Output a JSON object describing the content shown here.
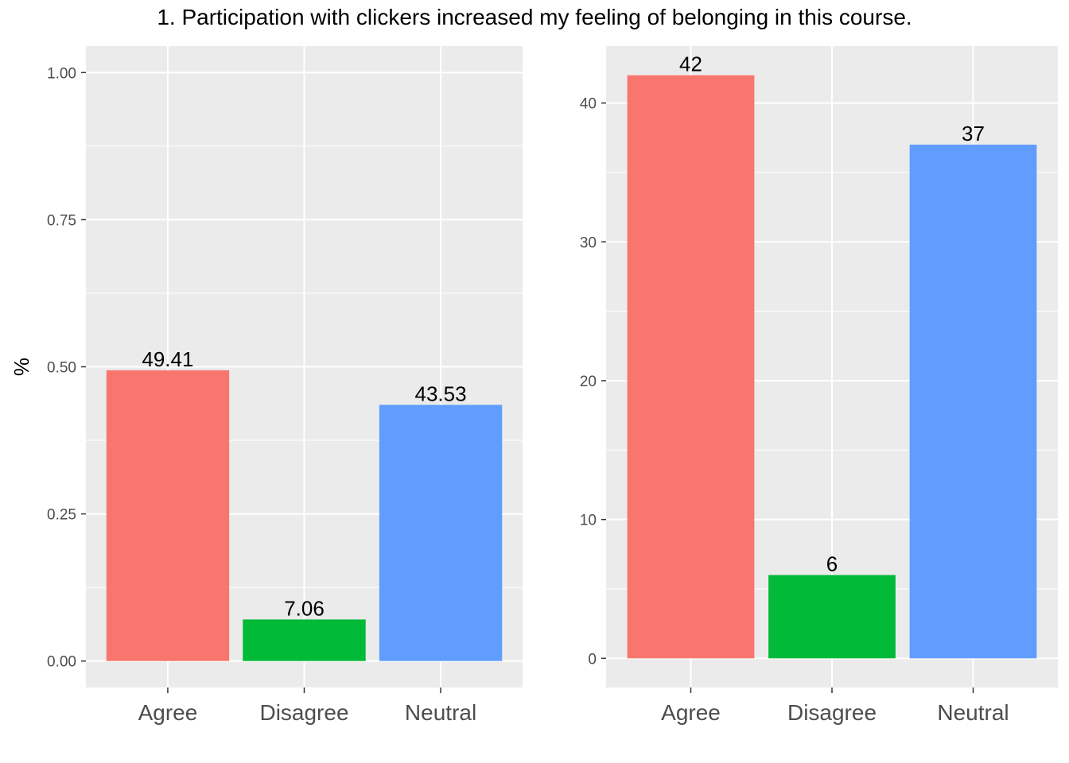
{
  "title": "1. Participation with clickers increased my feeling of belonging in this course.",
  "colors": {
    "panel_bg": "#ebebeb",
    "grid": "#ffffff",
    "tick": "#333333"
  },
  "chart_data": [
    {
      "type": "bar",
      "categories": [
        "Agree",
        "Disagree",
        "Neutral"
      ],
      "values": [
        0.4941,
        0.0706,
        0.4353
      ],
      "bar_labels": [
        "49.41",
        "7.06",
        "43.53"
      ],
      "colors": [
        "#f8766d",
        "#00ba38",
        "#619cff"
      ],
      "ylabel": "%",
      "ylim": [
        -0.045,
        1.045
      ],
      "yticks": [
        0,
        0.25,
        0.5,
        0.75,
        1.0
      ],
      "ytick_labels": [
        "0.00",
        "0.25",
        "0.50",
        "0.75",
        "1.00"
      ],
      "grid": true
    },
    {
      "type": "bar",
      "categories": [
        "Agree",
        "Disagree",
        "Neutral"
      ],
      "values": [
        42,
        6,
        37
      ],
      "bar_labels": [
        "42",
        "6",
        "37"
      ],
      "colors": [
        "#f8766d",
        "#00ba38",
        "#619cff"
      ],
      "ylabel": "",
      "ylim": [
        -2.1,
        44.1
      ],
      "yticks": [
        0,
        10,
        20,
        30,
        40
      ],
      "ytick_labels": [
        "0",
        "10",
        "20",
        "30",
        "40"
      ],
      "grid": true
    }
  ]
}
